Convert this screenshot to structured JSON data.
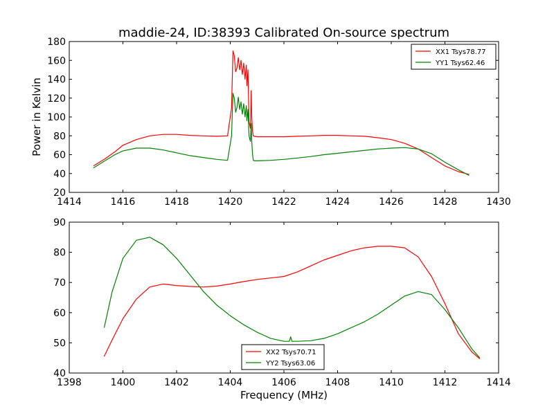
{
  "figure": {
    "title": "maddie-24, ID:38393 Calibrated On-source spectrum"
  },
  "chart_data": [
    {
      "type": "line",
      "title": "maddie-24, ID:38393 Calibrated On-source spectrum",
      "xlabel": "",
      "ylabel": "Power in Kelvin",
      "xlim": [
        1414,
        1430
      ],
      "ylim": [
        20,
        180
      ],
      "xticks": [
        1414,
        1416,
        1418,
        1420,
        1422,
        1424,
        1426,
        1428,
        1430
      ],
      "yticks": [
        20,
        40,
        60,
        80,
        100,
        120,
        140,
        160,
        180
      ],
      "grid": false,
      "legend": "top-right",
      "series": [
        {
          "name": "XX1 Tsys78.77",
          "color": "#ff0000",
          "x": [
            1414.9,
            1415.3,
            1415.7,
            1416.0,
            1416.5,
            1417.0,
            1417.5,
            1418.0,
            1418.5,
            1419.0,
            1419.5,
            1419.9,
            1420.05,
            1420.1,
            1420.15,
            1420.2,
            1420.25,
            1420.3,
            1420.35,
            1420.4,
            1420.45,
            1420.5,
            1420.55,
            1420.6,
            1420.62,
            1420.66,
            1420.7,
            1420.75,
            1420.78,
            1420.8,
            1420.83,
            1420.86,
            1420.9,
            1421.0,
            1421.5,
            1422.0,
            1422.5,
            1423.0,
            1423.5,
            1424.0,
            1424.5,
            1425.0,
            1425.5,
            1426.0,
            1426.5,
            1427.0,
            1427.5,
            1428.0,
            1428.5,
            1428.9
          ],
          "y": [
            48,
            55,
            63,
            70,
            76,
            80,
            81.5,
            81.5,
            80.5,
            80,
            79.5,
            80,
            110,
            170,
            165,
            148,
            152,
            163,
            150,
            160,
            145,
            157,
            140,
            155,
            133,
            150,
            95,
            88,
            128,
            100,
            85,
            80,
            79.5,
            79,
            79,
            79,
            79.5,
            80,
            80.5,
            80.5,
            80,
            79.5,
            78,
            76,
            72,
            66,
            57,
            48,
            42,
            39
          ]
        },
        {
          "name": "YY1 Tsys62.46",
          "color": "#008000",
          "x": [
            1414.9,
            1415.3,
            1415.7,
            1416.0,
            1416.5,
            1417.0,
            1417.5,
            1418.0,
            1418.5,
            1419.0,
            1419.5,
            1419.9,
            1420.05,
            1420.1,
            1420.15,
            1420.2,
            1420.25,
            1420.3,
            1420.35,
            1420.4,
            1420.45,
            1420.5,
            1420.55,
            1420.6,
            1420.62,
            1420.66,
            1420.7,
            1420.75,
            1420.78,
            1420.8,
            1420.83,
            1420.86,
            1420.9,
            1421.0,
            1421.5,
            1422.0,
            1422.5,
            1423.0,
            1423.5,
            1424.0,
            1424.5,
            1425.0,
            1425.5,
            1426.0,
            1426.5,
            1427.0,
            1427.5,
            1428.0,
            1428.5,
            1428.9
          ],
          "y": [
            46,
            53,
            60,
            64,
            67,
            67,
            65,
            62,
            59,
            57,
            55,
            54,
            80,
            125,
            120,
            105,
            110,
            121,
            108,
            116,
            103,
            114,
            100,
            112,
            96,
            108,
            80,
            74,
            93,
            75,
            60,
            54,
            53.5,
            53.5,
            54,
            55,
            56.5,
            58,
            60,
            61.5,
            63,
            64.5,
            66,
            67,
            67.5,
            66,
            61,
            52,
            44,
            38
          ]
        }
      ]
    },
    {
      "type": "line",
      "title": "",
      "xlabel": "Frequency (MHz)",
      "ylabel": "",
      "xlim": [
        1398,
        1414
      ],
      "ylim": [
        40,
        90
      ],
      "xticks": [
        1398,
        1400,
        1402,
        1404,
        1406,
        1408,
        1410,
        1412,
        1414
      ],
      "yticks": [
        40,
        50,
        60,
        70,
        80,
        90
      ],
      "grid": false,
      "legend": "bottom-center",
      "series": [
        {
          "name": "XX2 Tsys70.71",
          "color": "#ff0000",
          "x": [
            1399.3,
            1399.6,
            1400.0,
            1400.5,
            1401.0,
            1401.5,
            1402.0,
            1402.5,
            1403.0,
            1403.5,
            1404.0,
            1404.5,
            1405.0,
            1405.5,
            1406.0,
            1406.5,
            1407.0,
            1407.5,
            1408.0,
            1408.5,
            1409.0,
            1409.5,
            1410.0,
            1410.5,
            1411.0,
            1411.5,
            1412.0,
            1412.5,
            1413.0,
            1413.3
          ],
          "y": [
            45.5,
            51,
            58,
            64.5,
            68.5,
            69.5,
            69,
            68.7,
            68.5,
            68.8,
            69.5,
            70.3,
            71,
            71.5,
            72,
            73.5,
            75.5,
            77.5,
            79,
            80.5,
            81.5,
            82,
            82,
            81.5,
            78.5,
            72,
            63,
            53,
            47,
            44.7
          ]
        },
        {
          "name": "YY2 Tsys63.06",
          "color": "#008000",
          "x": [
            1399.3,
            1399.6,
            1400.0,
            1400.5,
            1401.0,
            1401.5,
            1402.0,
            1402.5,
            1403.0,
            1403.5,
            1404.0,
            1404.5,
            1405.0,
            1405.5,
            1406.0,
            1406.2,
            1406.25,
            1406.3,
            1406.5,
            1407.0,
            1407.5,
            1408.0,
            1408.5,
            1409.0,
            1409.5,
            1410.0,
            1410.5,
            1411.0,
            1411.5,
            1412.0,
            1412.5,
            1413.0,
            1413.3
          ],
          "y": [
            55,
            67,
            78,
            84,
            85,
            82.5,
            78,
            72.5,
            67,
            62.5,
            59,
            56,
            53.5,
            51.5,
            50.5,
            50.5,
            52,
            50.5,
            50.5,
            50.7,
            51.5,
            53,
            55,
            57,
            59.5,
            62.5,
            65.5,
            67,
            66,
            61,
            55,
            48,
            45
          ]
        }
      ]
    }
  ]
}
